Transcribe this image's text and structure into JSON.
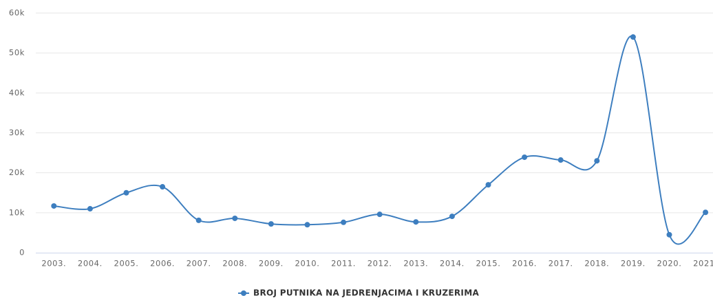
{
  "chart_data": {
    "type": "line",
    "categories": [
      "2003.",
      "2004.",
      "2005.",
      "2006.",
      "2007.",
      "2008.",
      "2009.",
      "2010.",
      "2011.",
      "2012.",
      "2013.",
      "2014.",
      "2015.",
      "2016.",
      "2017.",
      "2018.",
      "2019.",
      "2020.",
      "2021."
    ],
    "series": [
      {
        "name": "BROJ PUTNIKA NA JEDRENJACIMA I KRUZERIMA",
        "color": "#3d7ebf",
        "values": [
          11700,
          11000,
          15000,
          16500,
          8100,
          8600,
          7200,
          7000,
          7600,
          9600,
          7700,
          9100,
          17000,
          23900,
          23200,
          23000,
          54000,
          4500,
          10100
        ]
      }
    ],
    "ylim": [
      0,
      60000
    ],
    "yticks": [
      0,
      {
        "value": 10000,
        "label": "10k"
      },
      {
        "value": 20000,
        "label": "20k"
      },
      {
        "value": 30000,
        "label": "30k"
      },
      {
        "value": 40000,
        "label": "40k"
      },
      {
        "value": 50000,
        "label": "50k"
      },
      {
        "value": 60000,
        "label": "60k"
      }
    ],
    "grid": true,
    "legend": "bottom"
  }
}
